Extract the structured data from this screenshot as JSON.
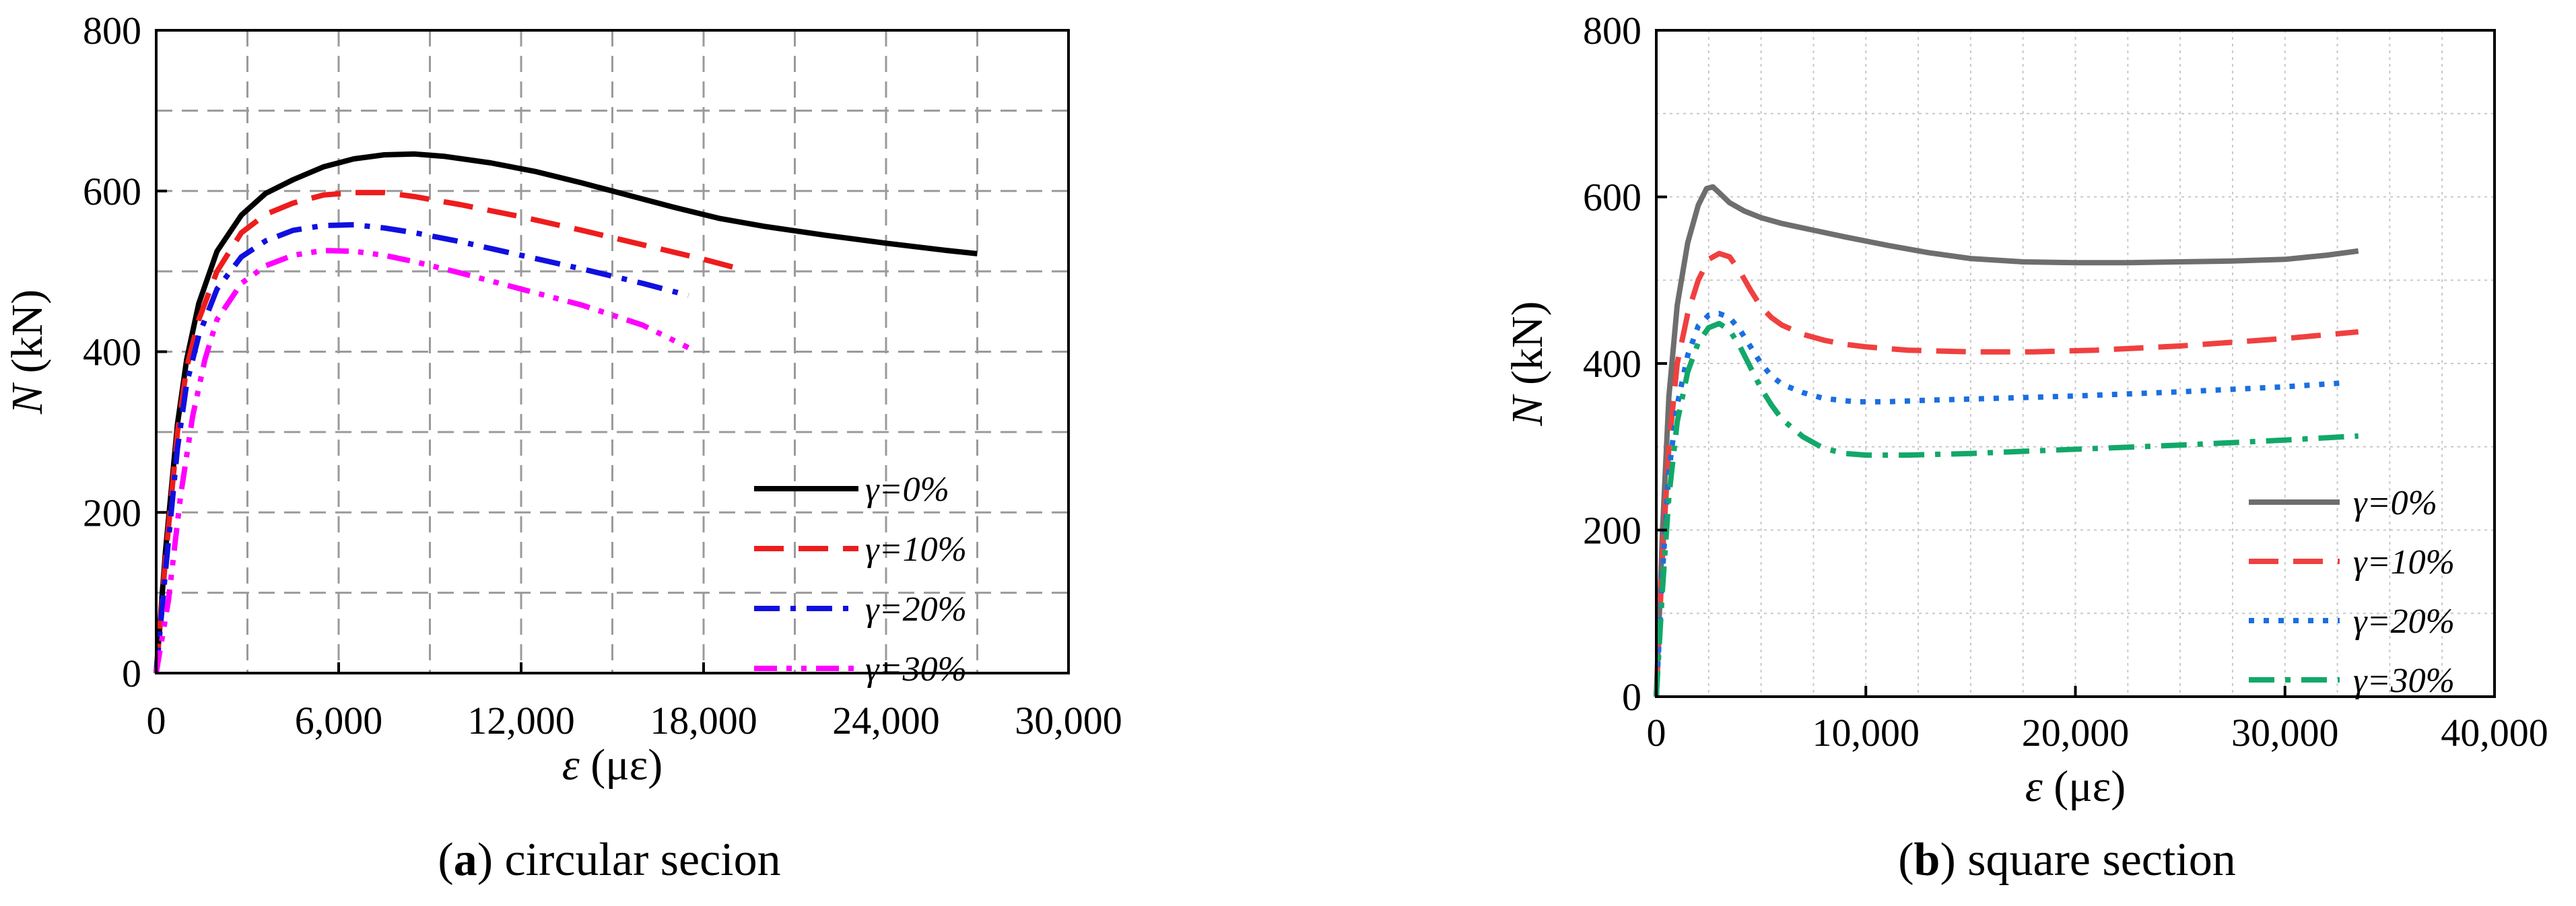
{
  "chart_data": [
    {
      "type": "line",
      "id": "a",
      "caption_letter": "a",
      "caption_text": " circular secion",
      "xlabel_sym": "ε",
      "xlabel_unit": " (με)",
      "ylabel_sym": "N",
      "ylabel_unit": " (kN)",
      "xlim": [
        0,
        30000
      ],
      "ylim": [
        0,
        800
      ],
      "xticks": [
        0,
        6000,
        12000,
        18000,
        24000,
        30000
      ],
      "xtick_labels": [
        "0",
        "6,000",
        "12,000",
        "18,000",
        "24,000",
        "30,000"
      ],
      "yticks": [
        0,
        200,
        400,
        600,
        800
      ],
      "ytick_labels": [
        "0",
        "200",
        "400",
        "600",
        "800"
      ],
      "grid": true,
      "legend": "bottom-right",
      "series": [
        {
          "name": "γ=0%",
          "color": "#000000",
          "dash": "solid",
          "x": [
            0,
            300,
            700,
            1000,
            1400,
            2000,
            2800,
            3600,
            4500,
            5500,
            6500,
            7500,
            8500,
            9500,
            11000,
            12500,
            14000,
            15500,
            17000,
            18500,
            20000,
            22000,
            24000,
            26000,
            27000
          ],
          "y": [
            0,
            150,
            310,
            390,
            460,
            525,
            570,
            597,
            614,
            630,
            640,
            645,
            646,
            643,
            635,
            624,
            610,
            595,
            580,
            566,
            556,
            545,
            535,
            526,
            522
          ]
        },
        {
          "name": "γ=10%",
          "color": "#ee1c1c",
          "dash": "dash",
          "x": [
            0,
            300,
            700,
            1000,
            1400,
            2000,
            2800,
            3600,
            4500,
            5500,
            6500,
            7500,
            8500,
            10000,
            12000,
            14000,
            16000,
            18000,
            19000
          ],
          "y": [
            0,
            140,
            300,
            380,
            440,
            500,
            548,
            571,
            585,
            595,
            598,
            598,
            593,
            583,
            568,
            551,
            533,
            515,
            505
          ]
        },
        {
          "name": "γ=20%",
          "color": "#1010e0",
          "dash": "dashdot",
          "x": [
            0,
            300,
            700,
            1000,
            1400,
            2000,
            2800,
            3600,
            4500,
            5500,
            6500,
            7500,
            8500,
            10000,
            12000,
            14000,
            16000,
            17500
          ],
          "y": [
            0,
            125,
            280,
            360,
            420,
            478,
            518,
            538,
            551,
            557,
            558,
            554,
            548,
            537,
            520,
            503,
            485,
            470
          ]
        },
        {
          "name": "γ=30%",
          "color": "#ff00ff",
          "dash": "dashdotdot",
          "x": [
            0,
            400,
            800,
            1200,
            1600,
            2000,
            2800,
            3600,
            4500,
            5500,
            6500,
            7500,
            8500,
            10000,
            12000,
            14000,
            16000,
            17500
          ],
          "y": [
            0,
            90,
            220,
            320,
            390,
            440,
            485,
            507,
            520,
            526,
            525,
            520,
            512,
            498,
            478,
            458,
            433,
            405
          ]
        }
      ]
    },
    {
      "type": "line",
      "id": "b",
      "caption_letter": "b",
      "caption_text": " square section",
      "xlabel_sym": "ε",
      "xlabel_unit": " (με)",
      "ylabel_sym": "N",
      "ylabel_unit": " (kN)",
      "xlim": [
        0,
        40000
      ],
      "ylim": [
        0,
        800
      ],
      "xticks": [
        0,
        10000,
        20000,
        30000,
        40000
      ],
      "xtick_labels": [
        "0",
        "10,000",
        "20,000",
        "30,000",
        "40,000"
      ],
      "yticks": [
        0,
        200,
        400,
        600,
        800
      ],
      "ytick_labels": [
        "0",
        "200",
        "400",
        "600",
        "800"
      ],
      "grid": true,
      "legend": "bottom-right",
      "series": [
        {
          "name": "γ=0%",
          "color": "#6e6e6e",
          "dash": "solid",
          "x": [
            0,
            300,
            600,
            1000,
            1500,
            2000,
            2400,
            2700,
            3000,
            3500,
            4200,
            5000,
            6000,
            7500,
            9000,
            11000,
            13000,
            15000,
            17500,
            20000,
            22500,
            25000,
            27500,
            30000,
            32000,
            33500
          ],
          "y": [
            0,
            200,
            360,
            470,
            545,
            590,
            610,
            612,
            605,
            593,
            583,
            575,
            568,
            560,
            552,
            542,
            533,
            526,
            522,
            521,
            521,
            522,
            523,
            525,
            530,
            535
          ]
        },
        {
          "name": "γ=10%",
          "color": "#f04040",
          "dash": "dash",
          "x": [
            0,
            300,
            600,
            1000,
            1500,
            2000,
            2500,
            3000,
            3500,
            4000,
            4500,
            5000,
            5500,
            6000,
            7000,
            8000,
            9000,
            10000,
            12000,
            15000,
            18000,
            21000,
            25000,
            30000,
            33500
          ],
          "y": [
            0,
            170,
            300,
            400,
            460,
            500,
            525,
            532,
            528,
            510,
            488,
            468,
            455,
            446,
            435,
            428,
            423,
            420,
            416,
            414,
            414,
            416,
            421,
            430,
            438
          ]
        },
        {
          "name": "γ=20%",
          "color": "#1a6fe0",
          "dash": "dot",
          "x": [
            0,
            300,
            600,
            1000,
            1500,
            2000,
            2500,
            3000,
            3500,
            4000,
            4500,
            5000,
            5500,
            6000,
            7000,
            8000,
            9500,
            11000,
            13000,
            16000,
            20000,
            25000,
            30000,
            33000
          ],
          "y": [
            0,
            150,
            270,
            350,
            410,
            445,
            458,
            460,
            455,
            440,
            420,
            400,
            385,
            375,
            365,
            358,
            354,
            354,
            356,
            358,
            361,
            366,
            372,
            377
          ]
        },
        {
          "name": "γ=30%",
          "color": "#12a86a",
          "dash": "dashdot",
          "x": [
            0,
            300,
            600,
            1000,
            1500,
            2000,
            2500,
            3000,
            3500,
            4000,
            4500,
            5000,
            5500,
            6000,
            7000,
            8000,
            9000,
            10000,
            12000,
            15000,
            18000,
            21000,
            25000,
            30000,
            33500
          ],
          "y": [
            0,
            130,
            240,
            330,
            390,
            425,
            443,
            448,
            440,
            420,
            395,
            370,
            350,
            333,
            312,
            298,
            292,
            290,
            290,
            292,
            295,
            298,
            302,
            308,
            313
          ]
        }
      ]
    }
  ]
}
